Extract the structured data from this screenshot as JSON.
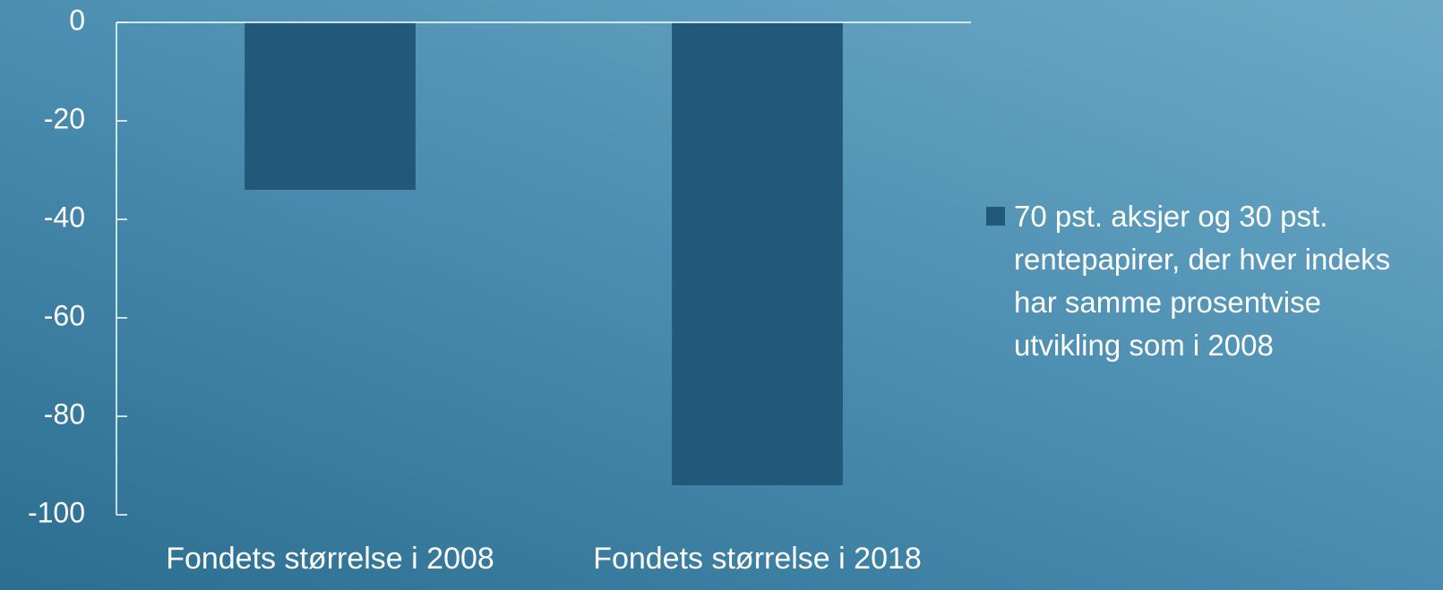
{
  "chart_data": {
    "type": "bar",
    "categories": [
      "Fondets størrelse i 2008",
      "Fondets størrelse i 2018"
    ],
    "series": [
      {
        "name": "70 pst. aksjer og 30 pst. rentepapirer, der hver indeks har samme prosentvise utvikling som i 2008",
        "color": "#22597a",
        "values": [
          -34,
          -94
        ]
      }
    ],
    "ylim": [
      -100,
      0
    ],
    "yticks": [
      -100,
      -80,
      -60,
      -40,
      -20,
      0
    ],
    "legend": "right"
  }
}
